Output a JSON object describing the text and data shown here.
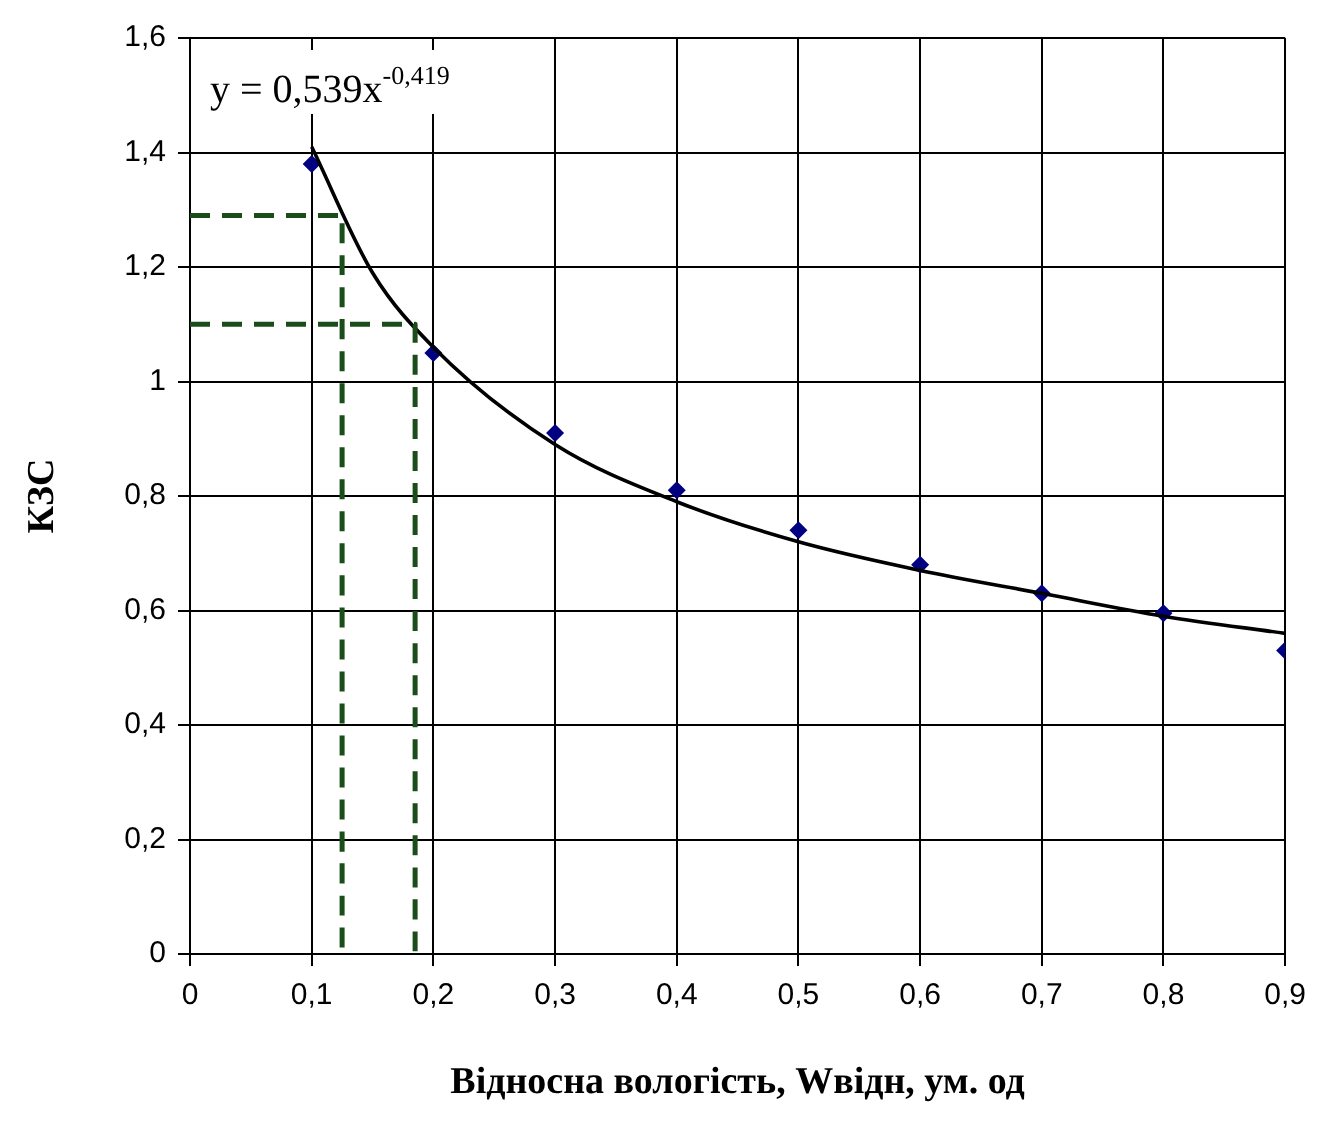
{
  "chart_data": {
    "type": "scatter",
    "xlabel": "Відносна вологість, Wвідн, ум. од",
    "ylabel": "КЗС",
    "annotations": [
      "y = 0,539x$^{-0,419}$"
    ],
    "xlim": [
      0,
      0.9
    ],
    "ylim": [
      0,
      1.6
    ],
    "xticks": [
      0,
      {
        "value": 0.1,
        "label": "0,1"
      },
      {
        "value": 0.2,
        "label": "0,2"
      },
      {
        "value": 0.3,
        "label": "0,3"
      },
      {
        "value": 0.4,
        "label": "0,4"
      },
      {
        "value": 0.5,
        "label": "0,5"
      },
      {
        "value": 0.6,
        "label": "0,6"
      },
      {
        "value": 0.7,
        "label": "0,7"
      },
      {
        "value": 0.8,
        "label": "0,8"
      },
      {
        "value": 0.9,
        "label": "0,9"
      }
    ],
    "yticks": [
      0,
      {
        "value": 0.2,
        "label": "0,2"
      },
      {
        "value": 0.4,
        "label": "0,4"
      },
      {
        "value": 0.6,
        "label": "0,6"
      },
      {
        "value": 0.8,
        "label": "0,8"
      },
      1,
      {
        "value": 1.2,
        "label": "1,2"
      },
      {
        "value": 1.4,
        "label": "1,4"
      },
      {
        "value": 1.6,
        "label": "1,6"
      }
    ],
    "grid": true,
    "series": [
      {
        "type": "line",
        "color": "#1a4d1a",
        "line_style": "dashed",
        "marker": "none",
        "x": [
          0,
          0.125,
          0.125
        ],
        "values": [
          1.29,
          1.29,
          0
        ]
      },
      {
        "type": "line",
        "color": "#1a4d1a",
        "line_style": "dashed",
        "marker": "none",
        "x": [
          0,
          0.185,
          0.185
        ],
        "values": [
          1.1,
          1.1,
          0
        ]
      },
      {
        "type": "line",
        "color": "#000000",
        "line_style": "solid",
        "marker": "none",
        "x": [
          0.1,
          0.15,
          0.2,
          0.3,
          0.4,
          0.5,
          0.6,
          0.7,
          0.8,
          0.9
        ],
        "values": [
          1.41,
          1.19,
          1.06,
          0.89,
          0.79,
          0.72,
          0.67,
          0.63,
          0.59,
          0.56
        ]
      },
      {
        "type": "scatter",
        "color": "#000080",
        "marker": "diamond",
        "x": [
          0.1,
          0.2,
          0.3,
          0.4,
          0.5,
          0.6,
          0.7,
          0.8,
          0.9
        ],
        "values": [
          1.38,
          1.05,
          0.91,
          0.81,
          0.74,
          0.68,
          0.63,
          0.595,
          0.53
        ]
      }
    ]
  }
}
